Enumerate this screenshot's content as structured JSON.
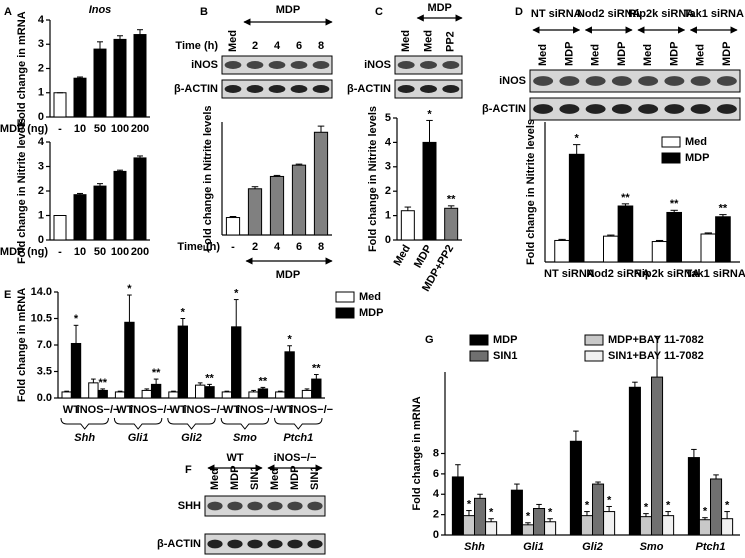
{
  "panels": [
    "A",
    "B",
    "C",
    "D",
    "E",
    "F",
    "G"
  ],
  "blots": {
    "B": {
      "header": "MDP",
      "time_label": "Time (h)",
      "lanes": [
        "Med",
        "2",
        "4",
        "6",
        "8"
      ],
      "rows": [
        "iNOS",
        "β-ACTIN"
      ]
    },
    "C": {
      "header": "MDP",
      "lanes": [
        "Med",
        "Med",
        "PP2"
      ],
      "rows": [
        "iNOS",
        "β-ACTIN"
      ]
    },
    "D": {
      "groups": [
        "NT siRNA",
        "Nod2 siRNA",
        "Rip2k siRNA",
        "Tak1 siRNA"
      ],
      "lanes": [
        "Med",
        "MDP",
        "Med",
        "MDP",
        "Med",
        "MDP",
        "Med",
        "MDP"
      ],
      "rows": [
        "iNOS",
        "β-ACTIN"
      ]
    },
    "F": {
      "groups": [
        "WT",
        "iNOS−/−"
      ],
      "lanes": [
        "Med",
        "MDP",
        "SIN1",
        "Med",
        "MDP",
        "SIN1"
      ],
      "rows": [
        "SHH",
        "β-ACTIN"
      ]
    }
  },
  "chart_data": [
    {
      "type": "bar",
      "title": "Inos",
      "ylabel": "Fold change in mRNA",
      "xlabel": "MDP (ng)",
      "categories": [
        "-",
        "10",
        "50",
        "100",
        "200"
      ],
      "values": [
        1,
        1.6,
        2.8,
        3.2,
        3.4
      ],
      "errors": [
        0,
        0.05,
        0.3,
        0.15,
        0.2
      ],
      "colors": [
        "#ffffff",
        "#000000",
        "#000000",
        "#000000",
        "#000000"
      ],
      "ylim": [
        0,
        4
      ],
      "yticks": [
        0,
        1,
        2,
        3,
        4
      ]
    },
    {
      "type": "bar",
      "ylabel": "Fold change in Nitrite levels",
      "xlabel": "MDP (ng)",
      "categories": [
        "-",
        "10",
        "50",
        "100",
        "200"
      ],
      "values": [
        1,
        1.85,
        2.2,
        2.8,
        3.35
      ],
      "errors": [
        0,
        0.05,
        0.1,
        0.05,
        0.08
      ],
      "colors": [
        "#ffffff",
        "#000000",
        "#000000",
        "#000000",
        "#000000"
      ],
      "ylim": [
        0,
        4
      ],
      "yticks": [
        0,
        1,
        2,
        3,
        4
      ]
    },
    {
      "type": "bar",
      "ylabel": "Fold change in Nitrite levels",
      "xlabel": "Time (h)",
      "xannotation": "MDP",
      "categories": [
        "-",
        "2",
        "4",
        "6",
        "8"
      ],
      "values": [
        0.85,
        2.25,
        2.85,
        3.4,
        5.0
      ],
      "errors": [
        0.05,
        0.1,
        0.05,
        0.05,
        0.3
      ],
      "colors": [
        "#ffffff",
        "#808080",
        "#808080",
        "#808080",
        "#808080"
      ],
      "ylim": [
        0,
        5.5
      ]
    },
    {
      "type": "bar",
      "ylabel": "Fold change in Nitrite levels",
      "categories": [
        "Med",
        "MDP",
        "MDP+PP2"
      ],
      "values": [
        1.2,
        4.0,
        1.3
      ],
      "errors": [
        0.15,
        0.9,
        0.1
      ],
      "annotations": [
        null,
        "*",
        "**"
      ],
      "colors": [
        "#ffffff",
        "#000000",
        "#808080"
      ],
      "ylim": [
        0,
        5
      ],
      "yticks": [
        0,
        1,
        2,
        3,
        4,
        5
      ]
    },
    {
      "type": "bar",
      "ylabel": "Fold change in Nitrite levels",
      "legend": "upper right",
      "categories": [
        "NT siRNA",
        "Nod2 siRNA",
        "Rip2k siRNA",
        "Tak1 siRNA"
      ],
      "series": [
        {
          "name": "Med",
          "color": "#ffffff",
          "values": [
            1,
            1.2,
            0.95,
            1.3
          ],
          "errors": [
            0.05,
            0.05,
            0.05,
            0.05
          ]
        },
        {
          "name": "MDP",
          "color": "#000000",
          "values": [
            5,
            2.6,
            2.3,
            2.1
          ],
          "errors": [
            0.45,
            0.1,
            0.1,
            0.1
          ],
          "annotations": [
            "*",
            "**",
            "**",
            "**"
          ]
        }
      ],
      "ylim": [
        0,
        6.5
      ]
    },
    {
      "type": "bar",
      "ylabel": "Fold change in mRNA",
      "legend": "upper right",
      "categories": [
        "WT",
        "iNOS−/−",
        "WT",
        "iNOS−/−",
        "WT",
        "iNOS−/−",
        "WT",
        "iNOS−/−",
        "WT",
        "iNOS−/−"
      ],
      "groups": [
        "Shh",
        "Gli1",
        "Gli2",
        "Smo",
        "Ptch1"
      ],
      "series": [
        {
          "name": "Med",
          "color": "#ffffff",
          "values": [
            0.8,
            2.0,
            0.8,
            1.0,
            0.8,
            1.7,
            0.8,
            0.8,
            0.8,
            1.0
          ],
          "errors": [
            0.1,
            0.5,
            0.1,
            0.2,
            0.1,
            0.3,
            0.1,
            0.2,
            0.1,
            0.2
          ]
        },
        {
          "name": "MDP",
          "color": "#000000",
          "values": [
            7.2,
            1.0,
            10,
            1.8,
            9.5,
            1.5,
            9.4,
            1.2,
            6.1,
            2.5
          ],
          "errors": [
            2.4,
            0.2,
            3.6,
            0.7,
            1.0,
            0.3,
            3.6,
            0.2,
            0.8,
            0.6
          ],
          "annotations": [
            "*",
            "**",
            "*",
            "**",
            "*",
            "**",
            "*",
            "**",
            "*",
            "**"
          ]
        }
      ],
      "ylim": [
        0,
        14
      ],
      "yticks": [
        {
          "value": 0,
          "label": "0.0"
        },
        3.5,
        {
          "value": 7,
          "label": "7.0"
        },
        10.5,
        {
          "value": 14,
          "label": "14.0"
        }
      ]
    },
    {
      "type": "bar",
      "ylabel": "Fold change in mRNA",
      "legend": "top",
      "categories": [
        "Shh",
        "Gli1",
        "Gli2",
        "Smo",
        "Ptch1"
      ],
      "series": [
        {
          "name": "MDP",
          "color": "#000000",
          "values": [
            5.7,
            4.4,
            9.2,
            14.5,
            7.6
          ],
          "errors": [
            1.2,
            0.6,
            1.0,
            0.5,
            0.8
          ]
        },
        {
          "name": "MDP+BAY 11-7082",
          "color": "#c8c8c8",
          "values": [
            1.9,
            1.0,
            1.9,
            1.8,
            1.5
          ],
          "errors": [
            0.5,
            0.2,
            0.4,
            0.3,
            0.2
          ],
          "annotations": [
            "*",
            "*",
            "*",
            "*",
            "*"
          ]
        },
        {
          "name": "SIN1",
          "color": "#707070",
          "values": [
            3.6,
            2.6,
            5.0,
            15.5,
            5.5
          ],
          "errors": [
            0.4,
            0.4,
            0.2,
            4.0,
            0.4
          ]
        },
        {
          "name": "SIN1+BAY 11-7082",
          "color": "#f0f0f0",
          "values": [
            1.3,
            1.3,
            2.3,
            1.9,
            1.6
          ],
          "errors": [
            0.3,
            0.3,
            0.5,
            0.4,
            0.7
          ],
          "annotations": [
            "*",
            "*",
            "*",
            "*",
            "*"
          ]
        }
      ],
      "ylim": [
        0,
        16
      ],
      "yticks": [
        0,
        2,
        4,
        6,
        8
      ]
    }
  ]
}
